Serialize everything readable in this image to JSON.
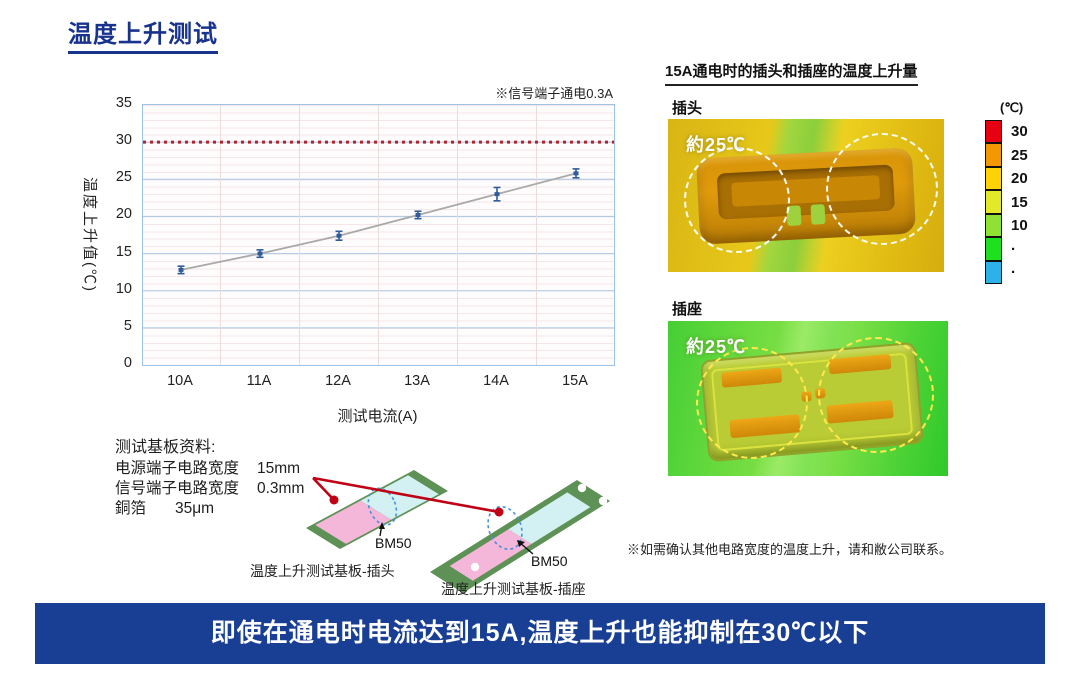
{
  "title": "温度上升测试",
  "chart_data": {
    "type": "line",
    "title": "",
    "note": "※信号端子通电0.3A",
    "xlabel": "测试电流(A)",
    "ylabel": "温度上升值(℃)",
    "categories": [
      "10A",
      "11A",
      "12A",
      "13A",
      "14A",
      "15A"
    ],
    "values": [
      12.8,
      15.0,
      17.4,
      20.2,
      23.0,
      25.8
    ],
    "errors": [
      0.5,
      0.5,
      0.6,
      0.5,
      0.9,
      0.6
    ],
    "ylim": [
      0,
      35
    ],
    "yticks": [
      0,
      5,
      10,
      15,
      20,
      25,
      30,
      35
    ],
    "limit_line": 30,
    "limit_color": "#b02430",
    "grid": true,
    "legend": false,
    "point_color": "#2f5b9d",
    "trend_color": "#a9a9a9"
  },
  "right_panel": {
    "heading": "15A通电时的插头和插座的温度上升量",
    "plug": {
      "label": "插头",
      "annotation": "約25℃"
    },
    "socket": {
      "label": "插座",
      "annotation": "約25℃"
    },
    "scale": {
      "unit": "(℃)",
      "segments": [
        {
          "label": "30",
          "color": "#e60012"
        },
        {
          "label": "25",
          "color": "#f39800"
        },
        {
          "label": "20",
          "color": "#ffd203"
        },
        {
          "label": "15",
          "color": "#e3e829"
        },
        {
          "label": "10",
          "color": "#8fe133"
        },
        {
          "label": "·",
          "color": "#1fe01f"
        },
        {
          "label": "·",
          "color": "#2cb1e8"
        }
      ]
    }
  },
  "board_info": {
    "heading": "测试基板资料:",
    "rows": [
      {
        "label": "电源端子电路宽度",
        "value": "15mm"
      },
      {
        "label": "信号端子电路宽度",
        "value": "0.3mm"
      },
      {
        "label": "銅箔",
        "value": "35μm"
      }
    ],
    "chip_label": "BM50",
    "plug_board_caption": "温度上升测试基板-插头",
    "socket_board_caption": "温度上升测试基板-插座"
  },
  "footnote": "※如需确认其他电路宽度的温度上升，请和敝公司联系。",
  "banner": "即使在通电时电流达到15A,温度上升也能抑制在30℃以下",
  "colors": {
    "title_blue": "#17338d",
    "banner_blue": "#183f94",
    "callout_red": "#c00014"
  }
}
